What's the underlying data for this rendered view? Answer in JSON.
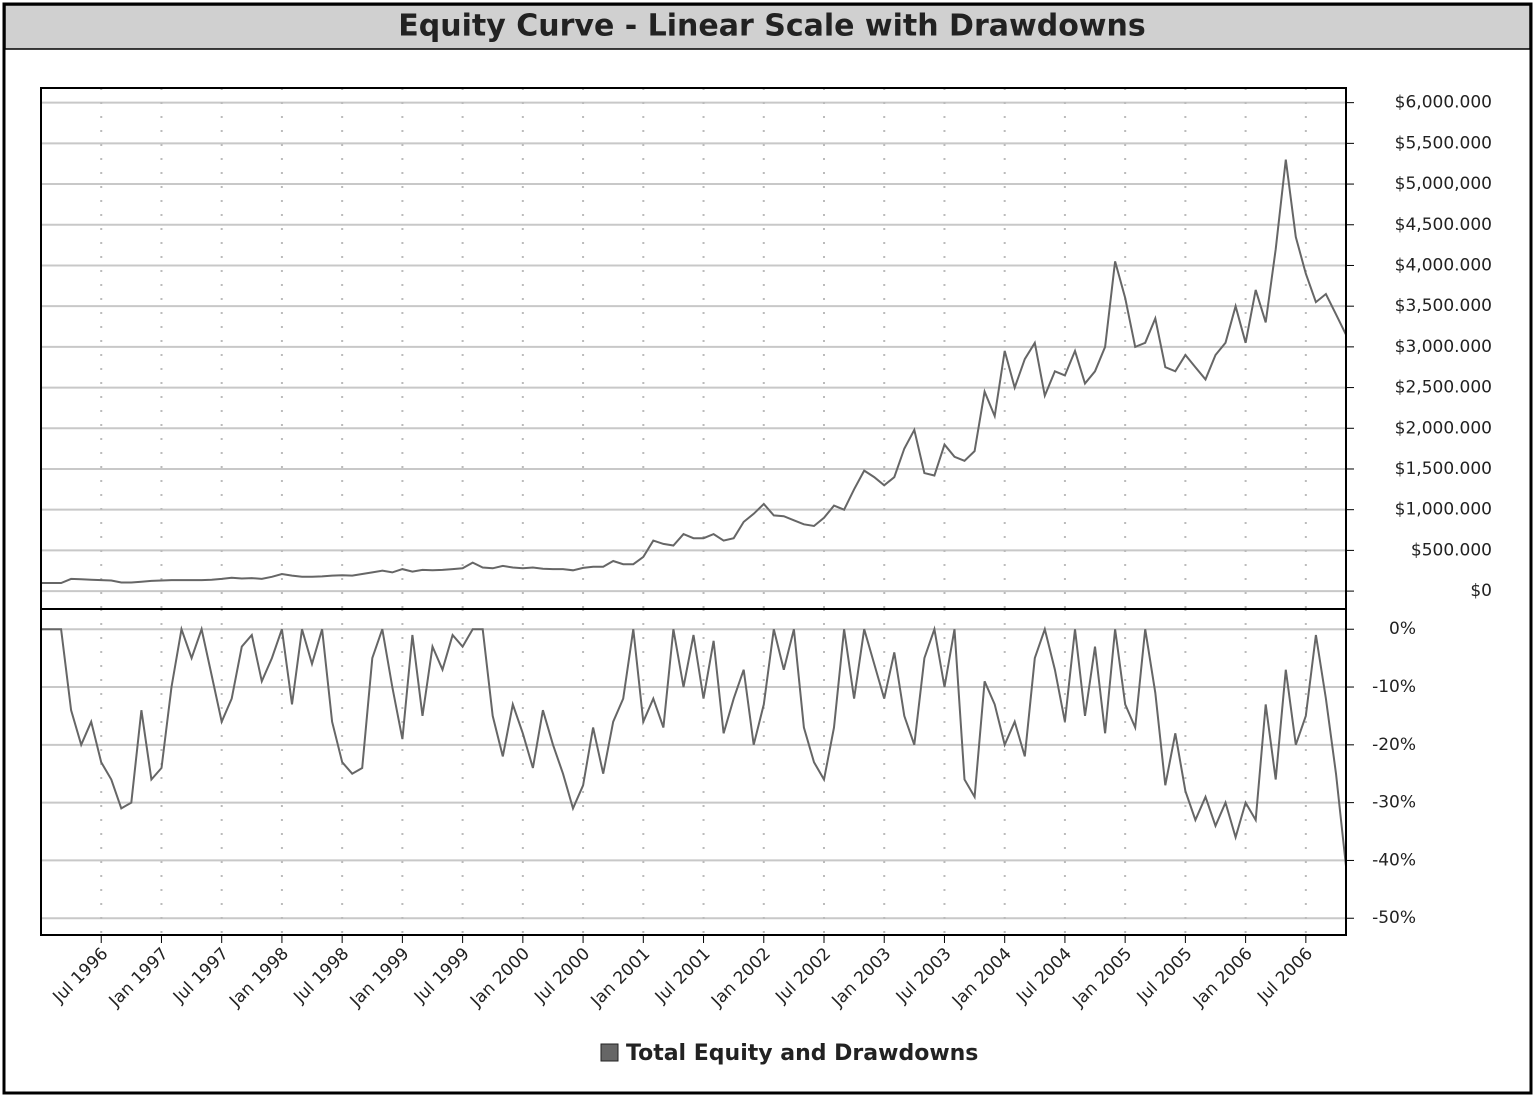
{
  "chart_data": {
    "type": "line",
    "title": "Equity Curve - Linear Scale with Drawdowns",
    "x": [
      "1996-01",
      "1996-02",
      "1996-03",
      "1996-04",
      "1996-05",
      "1996-06",
      "1996-07",
      "1996-08",
      "1996-09",
      "1996-10",
      "1996-11",
      "1996-12",
      "1997-01",
      "1997-02",
      "1997-03",
      "1997-04",
      "1997-05",
      "1997-06",
      "1997-07",
      "1997-08",
      "1997-09",
      "1997-10",
      "1997-11",
      "1997-12",
      "1998-01",
      "1998-02",
      "1998-03",
      "1998-04",
      "1998-05",
      "1998-06",
      "1998-07",
      "1998-08",
      "1998-09",
      "1998-10",
      "1998-11",
      "1998-12",
      "1999-01",
      "1999-02",
      "1999-03",
      "1999-04",
      "1999-05",
      "1999-06",
      "1999-07",
      "1999-08",
      "1999-09",
      "1999-10",
      "1999-11",
      "1999-12",
      "2000-01",
      "2000-02",
      "2000-03",
      "2000-04",
      "2000-05",
      "2000-06",
      "2000-07",
      "2000-08",
      "2000-09",
      "2000-10",
      "2000-11",
      "2000-12",
      "2001-01",
      "2001-02",
      "2001-03",
      "2001-04",
      "2001-05",
      "2001-06",
      "2001-07",
      "2001-08",
      "2001-09",
      "2001-10",
      "2001-11",
      "2001-12",
      "2002-01",
      "2002-02",
      "2002-03",
      "2002-04",
      "2002-05",
      "2002-06",
      "2002-07",
      "2002-08",
      "2002-09",
      "2002-10",
      "2002-11",
      "2002-12",
      "2003-01",
      "2003-02",
      "2003-03",
      "2003-04",
      "2003-05",
      "2003-06",
      "2003-07",
      "2003-08",
      "2003-09",
      "2003-10",
      "2003-11",
      "2003-12",
      "2004-01",
      "2004-02",
      "2004-03",
      "2004-04",
      "2004-05",
      "2004-06",
      "2004-07",
      "2004-08",
      "2004-09",
      "2004-10",
      "2004-11",
      "2004-12",
      "2005-01",
      "2005-02",
      "2005-03",
      "2005-04",
      "2005-05",
      "2005-06",
      "2005-07",
      "2005-08",
      "2005-09",
      "2005-10",
      "2005-11",
      "2005-12",
      "2006-01",
      "2006-02",
      "2006-03",
      "2006-04",
      "2006-05",
      "2006-06",
      "2006-07",
      "2006-08",
      "2006-09",
      "2006-10",
      "2006-11"
    ],
    "series": [
      {
        "name": "Total Equity and Drawdowns",
        "color": "#666666",
        "values": [
          100000,
          100000,
          100000,
          150000,
          145000,
          140000,
          135000,
          130000,
          105000,
          105000,
          115000,
          125000,
          130000,
          135000,
          135000,
          135000,
          135000,
          140000,
          150000,
          165000,
          155000,
          160000,
          150000,
          175000,
          210000,
          190000,
          175000,
          175000,
          180000,
          190000,
          195000,
          190000,
          210000,
          230000,
          250000,
          230000,
          270000,
          240000,
          260000,
          255000,
          260000,
          270000,
          280000,
          350000,
          290000,
          280000,
          310000,
          290000,
          280000,
          290000,
          275000,
          270000,
          270000,
          255000,
          285000,
          300000,
          300000,
          370000,
          330000,
          330000,
          420000,
          620000,
          580000,
          560000,
          700000,
          650000,
          650000,
          700000,
          620000,
          650000,
          850000,
          950000,
          1070000,
          930000,
          920000,
          870000,
          820000,
          800000,
          900000,
          1050000,
          1000000,
          1250000,
          1480000,
          1400000,
          1300000,
          1400000,
          1750000,
          1980000,
          1450000,
          1420000,
          1800000,
          1650000,
          1600000,
          1720000,
          2450000,
          2150000,
          2950000,
          2500000,
          2850000,
          3050000,
          2400000,
          2700000,
          2650000,
          2950000,
          2550000,
          2700000,
          3000000,
          4050000,
          3600000,
          3000000,
          3050000,
          3350000,
          2750000,
          2700000,
          2900000,
          2750000,
          2600000,
          2900000,
          3050000,
          3500000,
          3050000,
          3700000,
          3300000,
          4200000,
          5300000,
          4350000,
          3900000,
          3550000,
          3650000,
          3400000,
          3150000
        ]
      },
      {
        "color": "#666666",
        "axis": "y2",
        "values": [
          0,
          0,
          0,
          -14,
          -20,
          -16,
          -23,
          -26,
          -31,
          -30,
          -14,
          -26,
          -24,
          -10,
          0,
          -5,
          0,
          -8,
          -16,
          -12,
          -3,
          -1,
          -9,
          -5,
          0,
          -13,
          0,
          -6,
          0,
          -16,
          -23,
          -25,
          -24,
          -5,
          0,
          -10,
          -19,
          -1,
          -15,
          -3,
          -7,
          -1,
          -3,
          0,
          0,
          -15,
          -22,
          -13,
          -18,
          -24,
          -14,
          -20,
          -25,
          -31,
          -27,
          -17,
          -25,
          -16,
          -12,
          0,
          -16,
          -12,
          -17,
          0,
          -10,
          -1,
          -12,
          -2,
          -18,
          -12,
          -7,
          -20,
          -13,
          0,
          -7,
          0,
          -17,
          -23,
          -26,
          -17,
          0,
          -12,
          0,
          -6,
          -12,
          -4,
          -15,
          -20,
          -5,
          0,
          -10,
          0,
          -26,
          -29,
          -9,
          -13,
          -20,
          -16,
          -22,
          -5,
          0,
          -7,
          -16,
          0,
          -15,
          -3,
          -18,
          0,
          -13,
          -17,
          0,
          -11,
          -27,
          -18,
          -28,
          -33,
          -29,
          -34,
          -30,
          -36,
          -30,
          -33,
          -13,
          -26,
          -7,
          -20,
          -15,
          -1,
          -12,
          -25,
          -41
        ]
      }
    ],
    "xlim": [
      "1996-01",
      "2006-11"
    ],
    "xticks": [
      {
        "value": "1996-07",
        "label": "Jul 1996"
      },
      {
        "value": "1997-01",
        "label": "Jan 1997"
      },
      {
        "value": "1997-07",
        "label": "Jul 1997"
      },
      {
        "value": "1998-01",
        "label": "Jan 1998"
      },
      {
        "value": "1998-07",
        "label": "Jul 1998"
      },
      {
        "value": "1999-01",
        "label": "Jan 1999"
      },
      {
        "value": "1999-07",
        "label": "Jul 1999"
      },
      {
        "value": "2000-01",
        "label": "Jan 2000"
      },
      {
        "value": "2000-07",
        "label": "Jul 2000"
      },
      {
        "value": "2001-01",
        "label": "Jan 2001"
      },
      {
        "value": "2001-07",
        "label": "Jul 2001"
      },
      {
        "value": "2002-01",
        "label": "Jan 2002"
      },
      {
        "value": "2002-07",
        "label": "Jul 2002"
      },
      {
        "value": "2003-01",
        "label": "Jan 2003"
      },
      {
        "value": "2003-07",
        "label": "Jul 2003"
      },
      {
        "value": "2004-01",
        "label": "Jan 2004"
      },
      {
        "value": "2004-07",
        "label": "Jul 2004"
      },
      {
        "value": "2005-01",
        "label": "Jan 2005"
      },
      {
        "value": "2005-07",
        "label": "Jul 2005"
      },
      {
        "value": "2006-01",
        "label": "Jan 2006"
      },
      {
        "value": "2006-07",
        "label": "Jul 2006"
      }
    ],
    "ylim": [
      -220000,
      6180000
    ],
    "yticks": [
      {
        "value": 0,
        "label": "$0"
      },
      {
        "value": 500000,
        "label": "$500.000"
      },
      {
        "value": 1000000,
        "label": "$1,000.000"
      },
      {
        "value": 1500000,
        "label": "$1,500.000"
      },
      {
        "value": 2000000,
        "label": "$2,000.000"
      },
      {
        "value": 2500000,
        "label": "$2,500.000"
      },
      {
        "value": 3000000,
        "label": "$3,000.000"
      },
      {
        "value": 3500000,
        "label": "$3,500.000"
      },
      {
        "value": 4000000,
        "label": "$4,000.000"
      },
      {
        "value": 4500000,
        "label": "$4,500.000"
      },
      {
        "value": 5000000,
        "label": "$5,000,000"
      },
      {
        "value": 5500000,
        "label": "$5,500.000"
      },
      {
        "value": 6000000,
        "label": "$6,000.000"
      }
    ],
    "y2lim": [
      -52.9,
      3.5
    ],
    "y2ticks": [
      {
        "value": 0,
        "label": "0%"
      },
      {
        "value": -10,
        "label": "-10%"
      },
      {
        "value": -20,
        "label": "-20%"
      },
      {
        "value": -30,
        "label": "-30%"
      },
      {
        "value": -40,
        "label": "-40%"
      },
      {
        "value": -50,
        "label": "-50%"
      }
    ],
    "grid": true
  }
}
